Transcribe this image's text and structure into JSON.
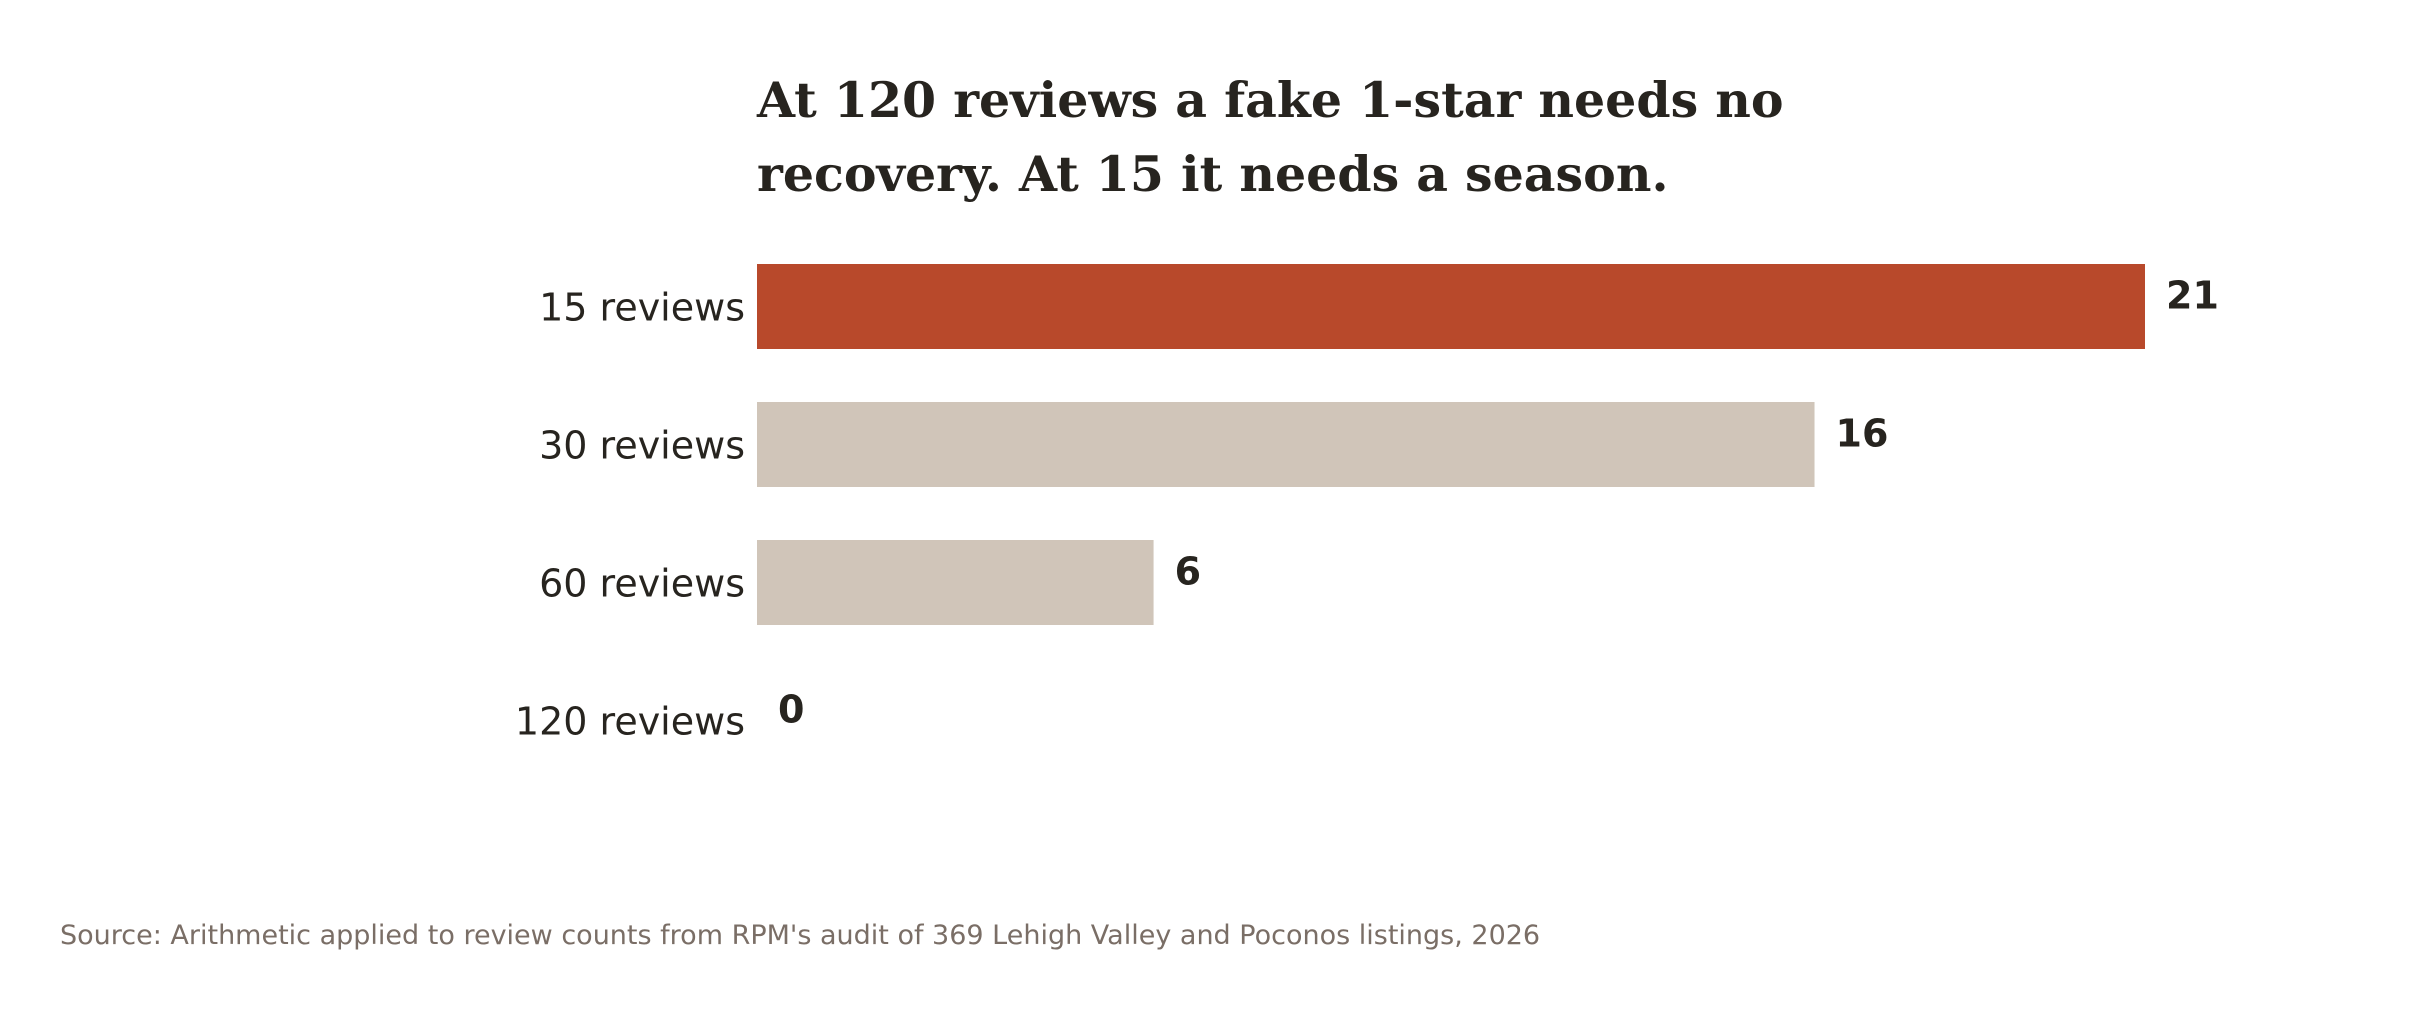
{
  "chart_data": {
    "type": "bar",
    "orientation": "horizontal",
    "title_lines": [
      "At 120 reviews a fake 1-star needs no",
      "recovery. At 15 it needs a season."
    ],
    "categories": [
      "15 reviews",
      "30 reviews",
      "60 reviews",
      "120 reviews"
    ],
    "values": [
      21,
      16,
      6,
      0
    ],
    "xlim": [
      0,
      21
    ],
    "highlight_index": 0,
    "colors": {
      "highlight": "#b8492b",
      "default": "#d0c5b9",
      "text": "#27241f",
      "source_text": "#7a6e66"
    },
    "grid": false,
    "legend": "none"
  },
  "source": "Source: Arithmetic applied to review counts from RPM's audit of 369 Lehigh Valley and Poconos listings, 2026"
}
